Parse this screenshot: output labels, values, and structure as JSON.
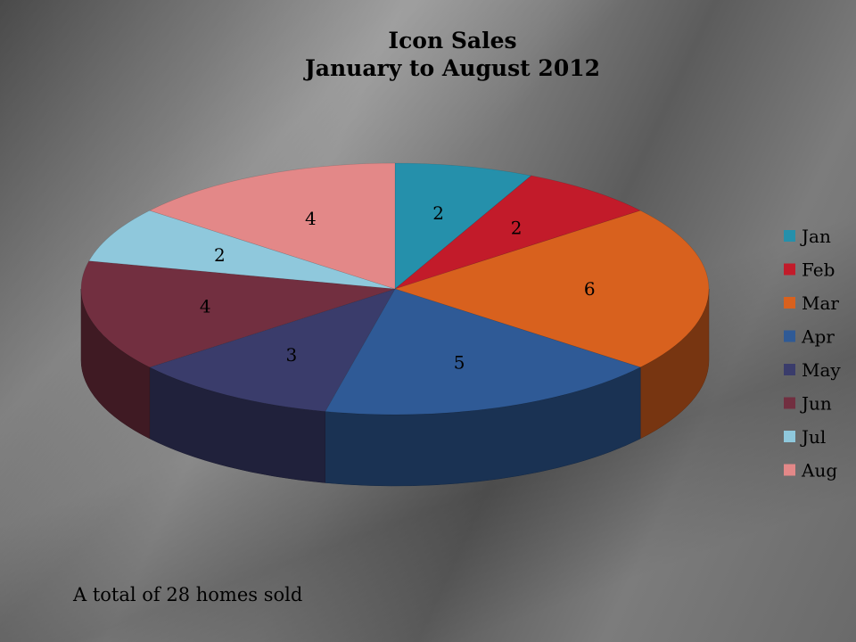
{
  "chart_data": {
    "type": "pie",
    "title": "Icon Sales",
    "subtitle": "January to August 2012",
    "categories": [
      "Jan",
      "Feb",
      "Mar",
      "Apr",
      "May",
      "Jun",
      "Jul",
      "Aug"
    ],
    "values": [
      2,
      2,
      6,
      5,
      3,
      4,
      2,
      4
    ],
    "colors": [
      "#2590ab",
      "#c21b2a",
      "#d8611e",
      "#2f5a96",
      "#3a3c6b",
      "#722f40",
      "#8fc8dc",
      "#e38888"
    ],
    "legend_position": "right",
    "style": "3d"
  },
  "footnote": "A total of 28 homes sold"
}
